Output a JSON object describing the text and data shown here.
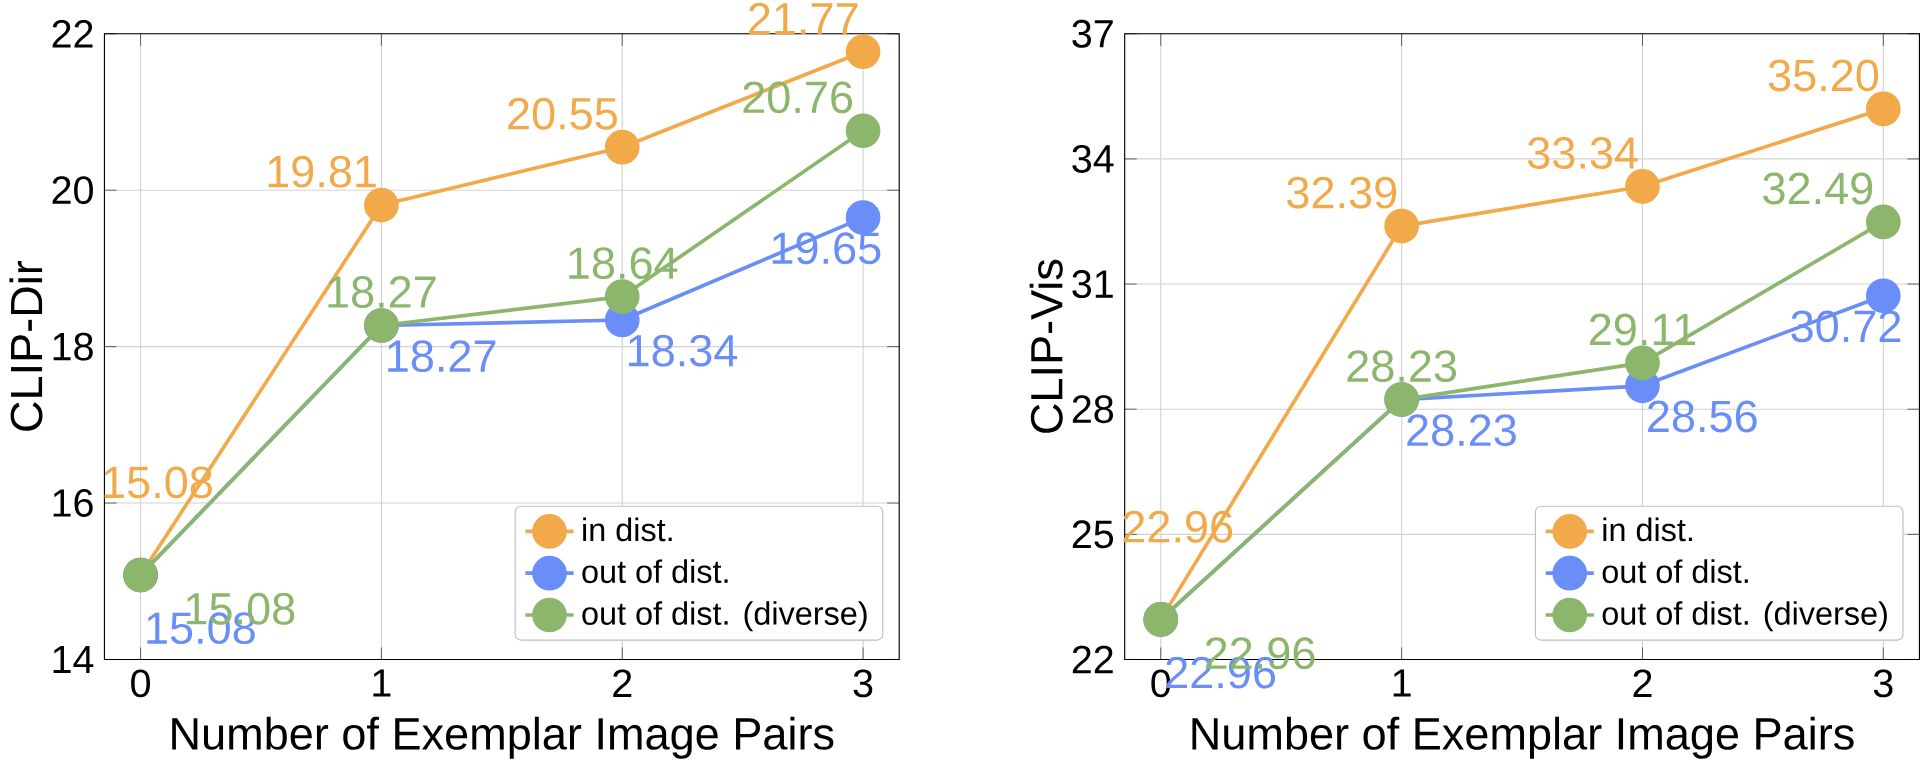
{
  "chart_data": [
    {
      "type": "line",
      "xlabel": "Number of Exemplar Image Pairs",
      "ylabel": "CLIP-Dir",
      "x": [
        0,
        1,
        2,
        3
      ],
      "xlim": [
        -0.15,
        3.15
      ],
      "xticks": [
        0,
        1,
        2,
        3
      ],
      "ylim": [
        14,
        22
      ],
      "yticks": [
        14,
        16,
        18,
        20,
        22
      ],
      "grid": true,
      "legend": "bottom right",
      "marker": "circle",
      "series": [
        {
          "name": "in dist.",
          "color": "#f2a94a",
          "values": [
            15.08,
            19.81,
            20.55,
            21.77
          ],
          "value_labels": [
            "15.08",
            "19.81",
            "20.55",
            "21.77"
          ]
        },
        {
          "name": "out of dist.",
          "color": "#6a8ef7",
          "values": [
            15.08,
            18.27,
            18.34,
            19.65
          ],
          "value_labels": [
            "15.08",
            "18.27",
            "18.34",
            "19.65"
          ]
        },
        {
          "name": "out of dist. (diverse)",
          "color": "#8cb66c",
          "values": [
            15.08,
            18.27,
            18.64,
            20.76
          ],
          "value_labels": [
            "15.08",
            "18.27",
            "18.64",
            "20.76"
          ]
        }
      ]
    },
    {
      "type": "line",
      "xlabel": "Number of Exemplar Image Pairs",
      "ylabel": "CLIP-Vis",
      "x": [
        0,
        1,
        2,
        3
      ],
      "xlim": [
        -0.15,
        3.15
      ],
      "xticks": [
        0,
        1,
        2,
        3
      ],
      "ylim": [
        22,
        37
      ],
      "yticks": [
        22,
        25,
        28,
        31,
        34,
        37
      ],
      "grid": true,
      "legend": "bottom right",
      "marker": "circle",
      "series": [
        {
          "name": "in dist.",
          "color": "#f2a94a",
          "values": [
            22.96,
            32.39,
            33.34,
            35.2
          ],
          "value_labels": [
            "22.96",
            "32.39",
            "33.34",
            "35.20"
          ]
        },
        {
          "name": "out of dist.",
          "color": "#6a8ef7",
          "values": [
            22.96,
            28.23,
            28.56,
            30.72
          ],
          "value_labels": [
            "22.96",
            "28.23",
            "28.56",
            "30.72"
          ]
        },
        {
          "name": "out of dist. (diverse)",
          "color": "#8cb66c",
          "values": [
            22.96,
            28.23,
            29.11,
            32.49
          ],
          "value_labels": [
            "22.96",
            "28.23",
            "29.11",
            "32.49"
          ]
        }
      ]
    }
  ]
}
